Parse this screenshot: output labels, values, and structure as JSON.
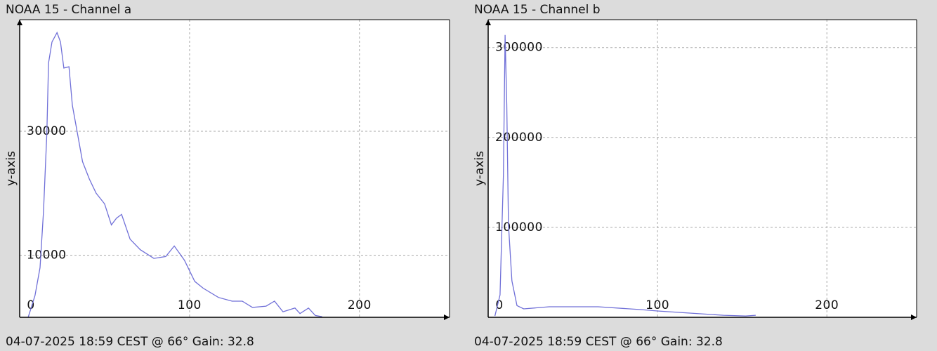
{
  "chart_data": [
    {
      "type": "line",
      "title": "NOAA 15 - Channel a",
      "ylabel": "y-axis",
      "footer": "04-07-2025 18:59 CEST @ 66° Gain: 32.8",
      "color": "#7070d8",
      "grid": true,
      "xlim": [
        0,
        253
      ],
      "ylim": [
        0,
        48000
      ],
      "xticks": [
        0,
        100,
        200
      ],
      "yticks": [
        10000,
        30000
      ],
      "x": [
        5,
        9,
        12,
        14,
        16,
        17,
        19,
        22,
        24,
        26,
        29,
        31,
        34,
        37,
        41,
        45,
        50,
        54,
        57,
        60,
        65,
        71,
        79,
        86,
        91,
        97,
        103,
        108,
        117,
        125,
        131,
        137,
        145,
        150,
        155,
        162,
        165,
        170,
        174,
        178
      ],
      "values": [
        0,
        3500,
        8000,
        17000,
        29700,
        41000,
        44400,
        45900,
        44400,
        40200,
        40400,
        34200,
        29700,
        25100,
        22300,
        20000,
        18300,
        14900,
        16000,
        16600,
        12600,
        10900,
        9500,
        9800,
        11500,
        9200,
        5800,
        4700,
        3200,
        2600,
        2600,
        1600,
        1800,
        2600,
        900,
        1500,
        600,
        1500,
        300,
        100
      ]
    },
    {
      "type": "line",
      "title": "NOAA 15 - Channel b",
      "ylabel": "y-axis",
      "footer": "04-07-2025 18:59 CEST @ 66° Gain: 32.8",
      "color": "#7070d8",
      "grid": true,
      "xlim": [
        0,
        253
      ],
      "ylim": [
        0,
        331000
      ],
      "xticks": [
        0,
        100,
        200
      ],
      "yticks": [
        100000,
        200000,
        300000
      ],
      "x": [
        4,
        7,
        9,
        10,
        11,
        12,
        14,
        17,
        21,
        36,
        65,
        90,
        100,
        119,
        139,
        152,
        158
      ],
      "values": [
        1500,
        25000,
        158000,
        314000,
        236000,
        103000,
        40600,
        13000,
        9400,
        11700,
        11700,
        8600,
        7000,
        4700,
        2300,
        1500,
        2300
      ]
    }
  ]
}
